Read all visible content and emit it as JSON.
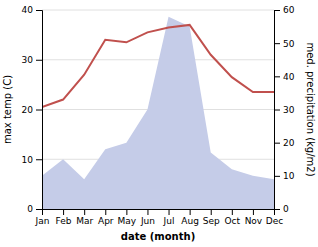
{
  "chart_data": {
    "type": "line",
    "xlabel": "date (month)",
    "ylabel": "max temp (C)",
    "y2label": "med. precipitation (kg/m2)",
    "categories": [
      "Jan",
      "Feb",
      "Mar",
      "Apr",
      "May",
      "Jun",
      "Jul",
      "Aug",
      "Sep",
      "Oct",
      "Nov",
      "Dec"
    ],
    "series": [
      {
        "type": "area",
        "axis": "y2",
        "color": "#c5cce8",
        "values": [
          10,
          15,
          9,
          18,
          20,
          30,
          58,
          55,
          17,
          12,
          10,
          9
        ]
      },
      {
        "type": "line",
        "color": "#c0504d",
        "values": [
          20.5,
          22.0,
          27.0,
          34.0,
          33.5,
          35.5,
          36.5,
          37.0,
          31.0,
          26.5,
          23.5,
          23.5
        ]
      }
    ],
    "ylim": [
      0,
      40
    ],
    "yticks": [
      0,
      10,
      20,
      30,
      40
    ],
    "y2lim": [
      0,
      60
    ],
    "y2ticks": [
      0,
      10,
      20,
      30,
      40,
      50,
      60
    ],
    "grid": true
  }
}
